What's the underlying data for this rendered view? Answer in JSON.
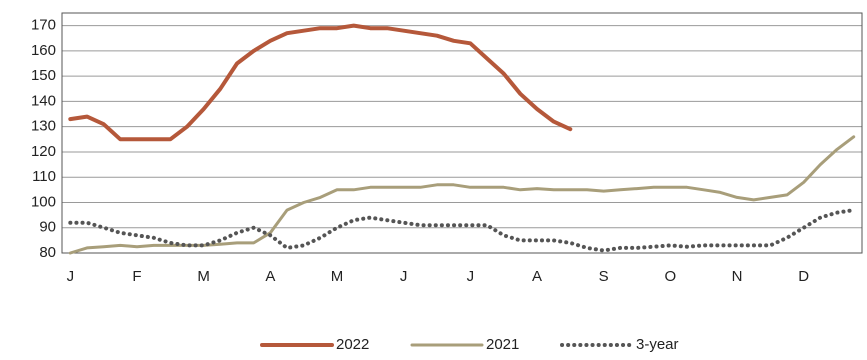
{
  "chart_data": {
    "type": "line",
    "categories": [
      "J",
      null,
      null,
      null,
      "F",
      null,
      null,
      null,
      "M",
      null,
      null,
      null,
      "A",
      null,
      null,
      null,
      "M",
      null,
      null,
      null,
      "J",
      null,
      null,
      null,
      "J",
      null,
      null,
      null,
      "A",
      null,
      null,
      null,
      "S",
      null,
      null,
      null,
      "O",
      null,
      null,
      null,
      "N",
      null,
      null,
      null,
      "D",
      null,
      null,
      null
    ],
    "series": [
      {
        "name": "2022",
        "color": "#b5583a",
        "style": "solid",
        "values": [
          133,
          134,
          131,
          125,
          125,
          125,
          125,
          130,
          137,
          145,
          155,
          160,
          164,
          167,
          168,
          169,
          169,
          170,
          169,
          169,
          168,
          167,
          166,
          164,
          163,
          157,
          151,
          143,
          137,
          132,
          129,
          null,
          null,
          null,
          null,
          null,
          null,
          null,
          null,
          null,
          null,
          null,
          null,
          null,
          null,
          null,
          null,
          null
        ]
      },
      {
        "name": "2021",
        "color": "#a89e7a",
        "style": "solid",
        "values": [
          80,
          82,
          82.5,
          83,
          82.5,
          83,
          83,
          83,
          83,
          83.5,
          84,
          84,
          88,
          97,
          100,
          102,
          105,
          105,
          106,
          106,
          106,
          106,
          107,
          107,
          106,
          106,
          106,
          105,
          105.5,
          105,
          105,
          105,
          104.5,
          105,
          105.5,
          106,
          106,
          106,
          105,
          104,
          102,
          101,
          102,
          103,
          108,
          115,
          121,
          126
        ]
      },
      {
        "name": "3-year",
        "color": "#555555",
        "style": "dotted",
        "values": [
          92,
          92,
          90,
          88,
          87,
          86,
          84,
          83,
          83,
          85,
          88,
          90,
          87,
          82,
          83,
          86,
          90,
          93,
          94,
          93,
          92,
          91,
          91,
          91,
          91,
          91,
          87,
          85,
          85,
          85,
          84,
          82,
          81,
          82,
          82,
          82.5,
          83,
          82.5,
          83,
          83,
          83,
          83,
          83,
          86,
          90,
          94,
          96,
          97
        ]
      }
    ],
    "ylim": [
      80,
      175
    ],
    "yticks": [
      80,
      90,
      100,
      110,
      120,
      130,
      140,
      150,
      160,
      170
    ],
    "grid": true,
    "legend": "bottom"
  }
}
